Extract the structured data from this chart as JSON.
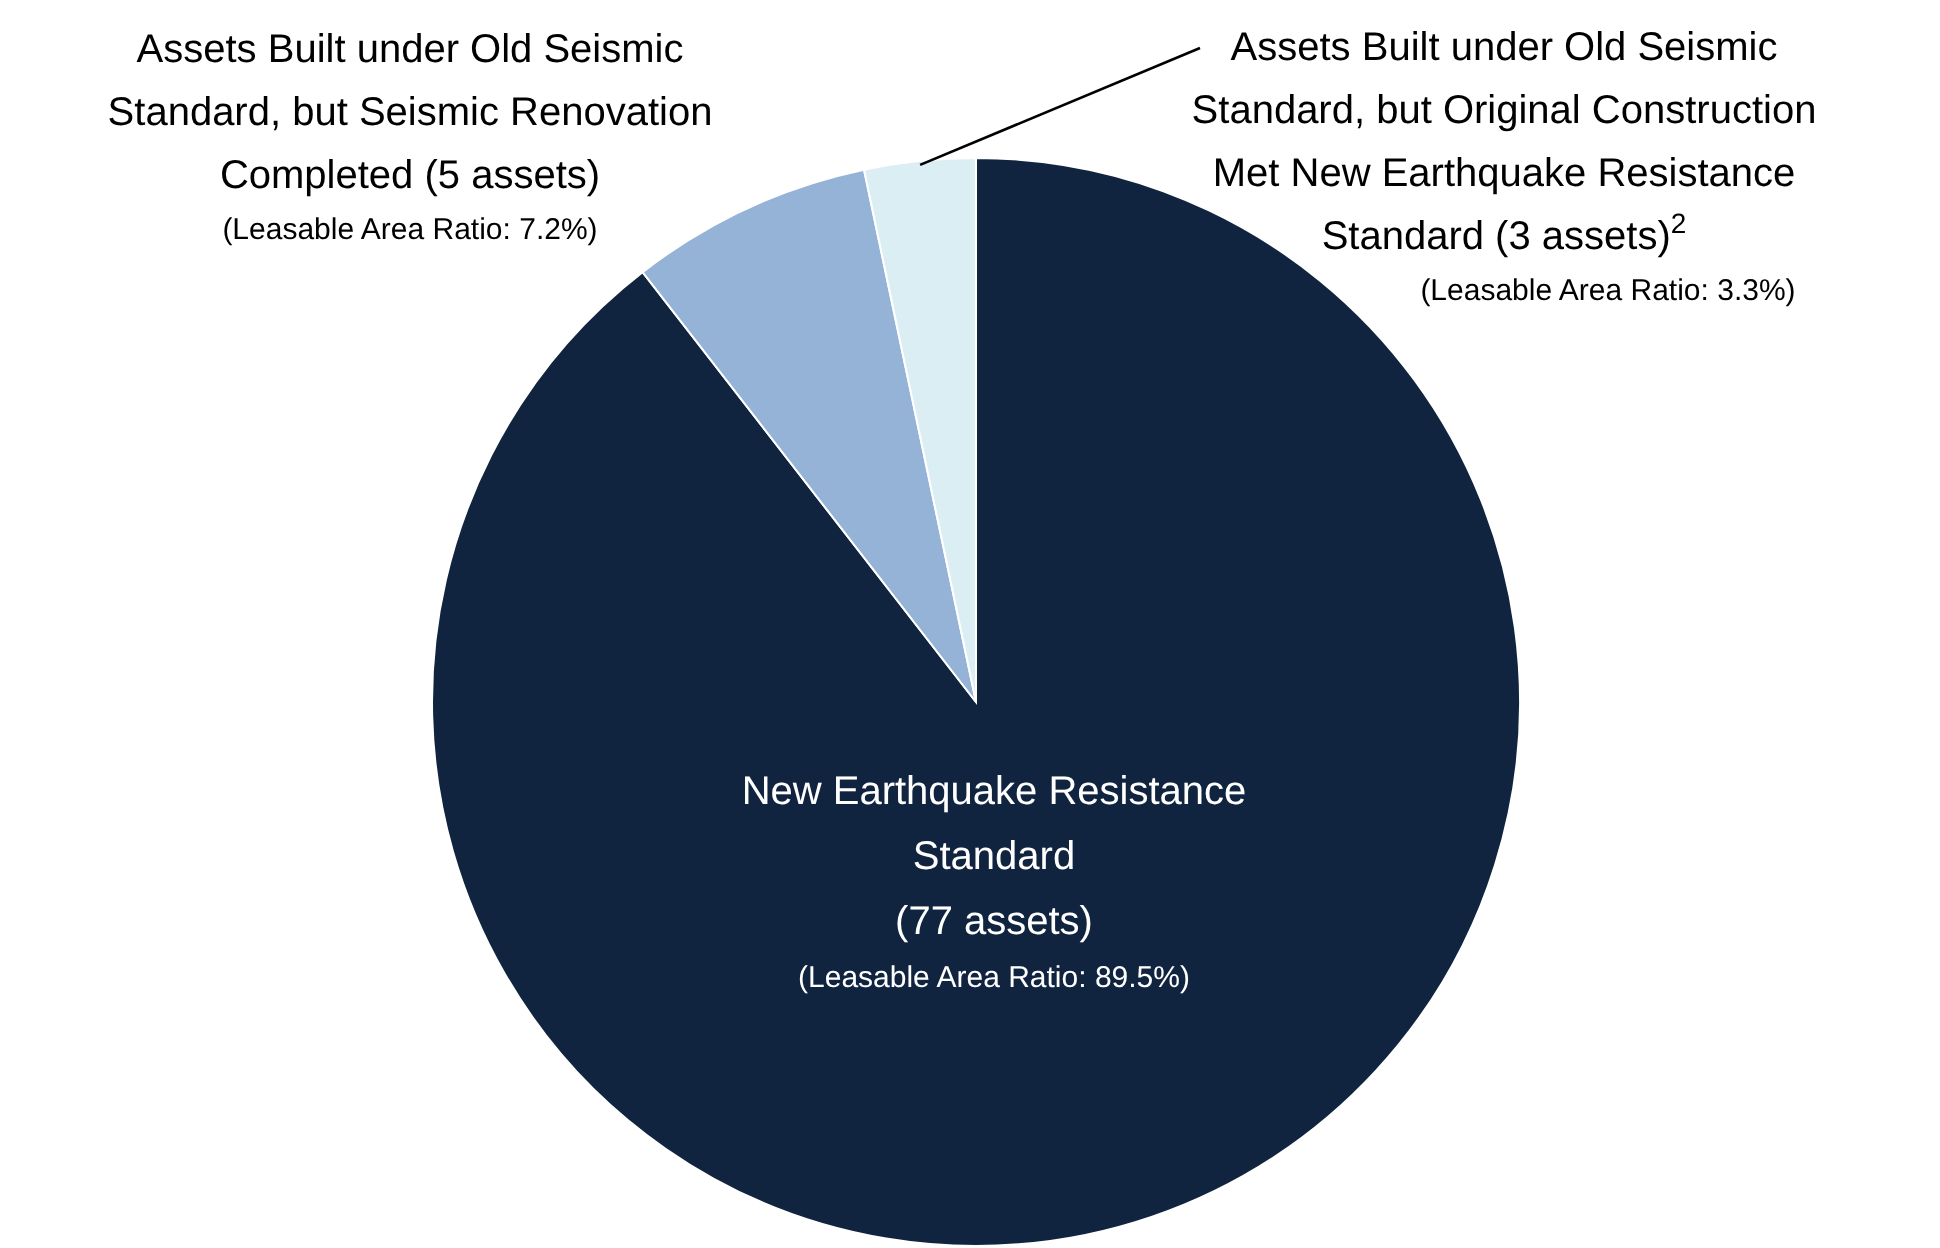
{
  "chart_data": {
    "type": "pie",
    "categories": [
      "New Earthquake Resistance\nStandard\n(77 assets)",
      "Assets Built under Old Seismic\nStandard, but Seismic Renovation\nCompleted (5 assets)",
      "Assets Built under Old Seismic\nStandard, but Original Construction\nMet New Earthquake Resistance\nStandard (3 assets)$^{2}$"
    ],
    "values": [
      89.5,
      7.2,
      3.3
    ],
    "value_labels": [
      "(Leasable Area Ratio: 89.5%)",
      "(Leasable Area Ratio: 7.2%)",
      "(Leasable Area Ratio: 3.3%)"
    ],
    "colors": [
      "#10243f",
      "#95b3d7",
      "#dbeef4"
    ]
  }
}
